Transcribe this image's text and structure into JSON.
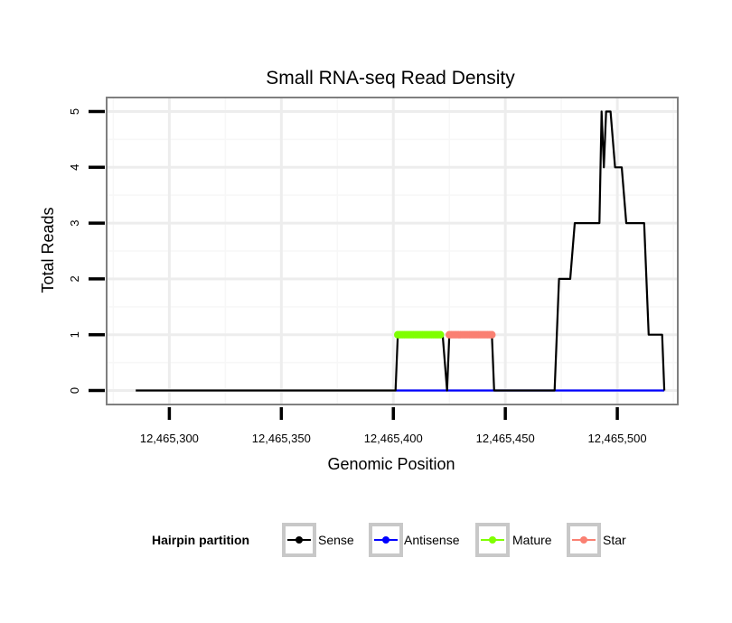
{
  "chart_data": {
    "type": "line",
    "title": "Small RNA-seq Read Density",
    "xlabel": "Genomic Position",
    "ylabel": "Total Reads",
    "xlim": [
      12465272,
      12465527
    ],
    "ylim": [
      -0.25,
      5.25
    ],
    "x_ticks": [
      12465300,
      12465350,
      12465400,
      12465450,
      12465500
    ],
    "x_tick_labels": [
      "12,465,300",
      "12,465,350",
      "12,465,400",
      "12,465,450",
      "12,465,500"
    ],
    "y_ticks": [
      0,
      1,
      2,
      3,
      4,
      5
    ],
    "y_tick_labels": [
      "0",
      "1",
      "2",
      "3",
      "4",
      "5"
    ],
    "grid": true,
    "legend": {
      "title": "Hairpin partition",
      "placement": "bottom",
      "entries": [
        {
          "label": "Sense",
          "color": "#000000"
        },
        {
          "label": "Antisense",
          "color": "#0000ff"
        },
        {
          "label": "Mature",
          "color": "#7fff00"
        },
        {
          "label": "Star",
          "color": "#fa8072"
        }
      ]
    },
    "series": [
      {
        "name": "Sense",
        "color": "#000000",
        "points": true,
        "x": [
          12465285,
          12465401,
          12465402,
          12465421,
          12465422,
          12465424,
          12465425,
          12465444,
          12465445,
          12465472,
          12465474,
          12465479,
          12465481,
          12465487,
          12465492,
          12465493,
          12465494,
          12465495,
          12465496,
          12465497,
          12465499,
          12465502,
          12465504,
          12465507,
          12465512,
          12465514,
          12465520,
          12465521
        ],
        "y": [
          0,
          0,
          1,
          1,
          1,
          0,
          1,
          1,
          0,
          0,
          2,
          2,
          3,
          3,
          3,
          5,
          4,
          5,
          5,
          5,
          4,
          4,
          3,
          3,
          3,
          1,
          1,
          0
        ]
      },
      {
        "name": "Antisense",
        "color": "#0000ff",
        "points": true,
        "x": [
          12465401,
          12465521
        ],
        "y": [
          0,
          0
        ]
      },
      {
        "name": "Mature",
        "color": "#7fff00",
        "points": true,
        "x": [
          12465402,
          12465403,
          12465404,
          12465405,
          12465406,
          12465407,
          12465408,
          12465409,
          12465410,
          12465411,
          12465412,
          12465413,
          12465414,
          12465415,
          12465416,
          12465417,
          12465418,
          12465419,
          12465420,
          12465421
        ],
        "y": [
          1,
          1,
          1,
          1,
          1,
          1,
          1,
          1,
          1,
          1,
          1,
          1,
          1,
          1,
          1,
          1,
          1,
          1,
          1,
          1
        ]
      },
      {
        "name": "Star",
        "color": "#fa8072",
        "points": true,
        "x": [
          12465425,
          12465426,
          12465427,
          12465428,
          12465429,
          12465430,
          12465431,
          12465432,
          12465433,
          12465434,
          12465435,
          12465436,
          12465437,
          12465438,
          12465439,
          12465440,
          12465441,
          12465442,
          12465443,
          12465444
        ],
        "y": [
          1,
          1,
          1,
          1,
          1,
          1,
          1,
          1,
          1,
          1,
          1,
          1,
          1,
          1,
          1,
          1,
          1,
          1,
          1,
          1
        ]
      }
    ]
  }
}
